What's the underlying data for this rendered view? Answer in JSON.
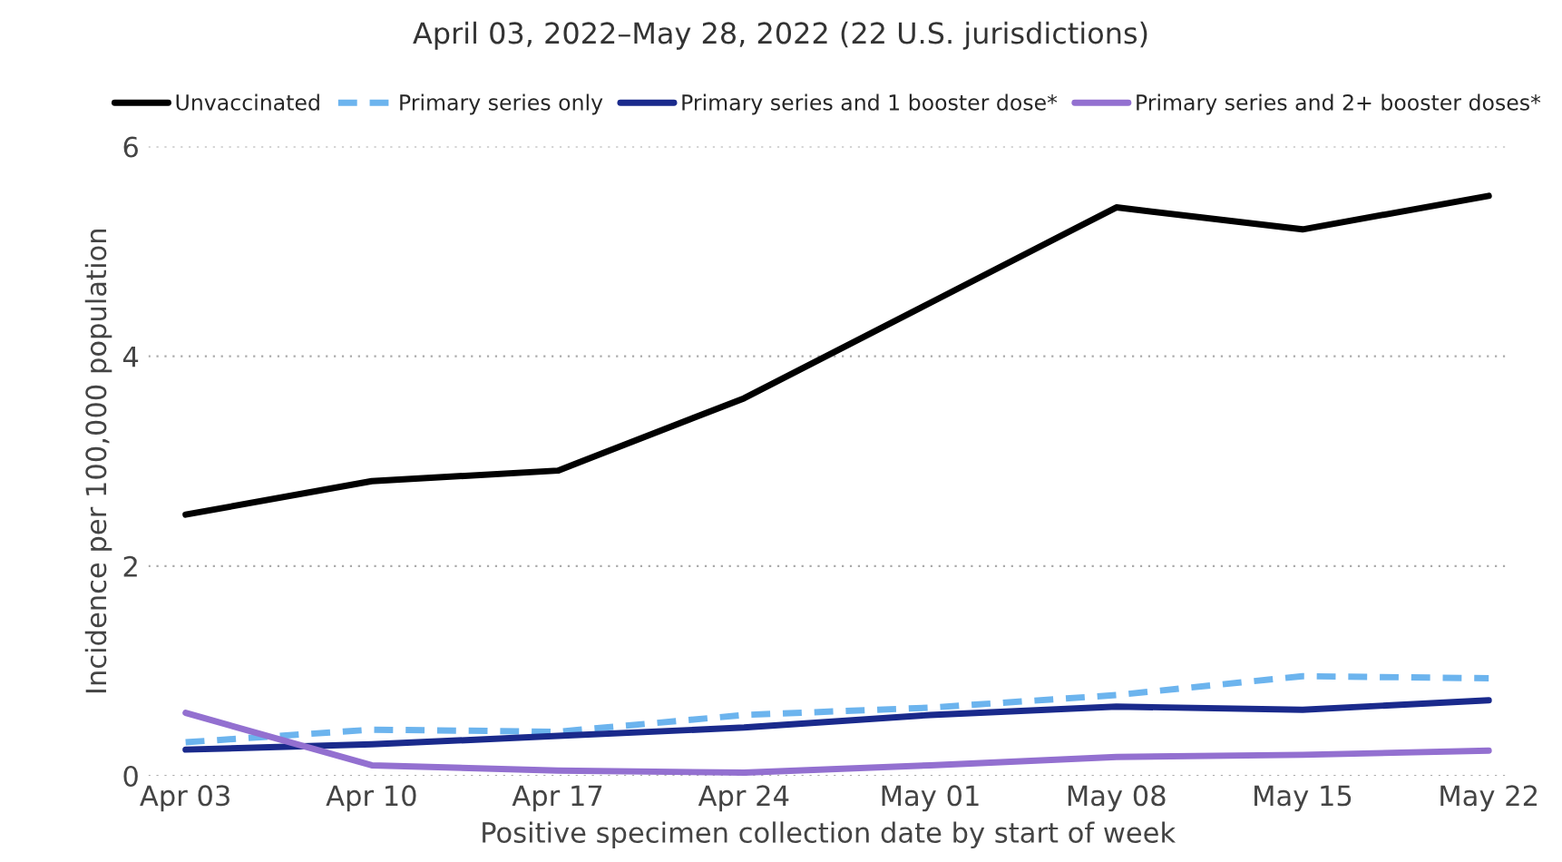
{
  "chart_data": {
    "type": "line",
    "title": "April 03, 2022–May 28, 2022 (22 U.S. jurisdictions)",
    "xlabel": "Positive specimen collection date by start of week",
    "ylabel": "Incidence per 100,000 population",
    "categories": [
      "Apr 03",
      "Apr 10",
      "Apr 17",
      "Apr 24",
      "May 01",
      "May 08",
      "May 15",
      "May 22"
    ],
    "series": [
      {
        "name": "Unvaccinated",
        "color": "#000000",
        "line_style": "solid",
        "values": [
          2.49,
          2.81,
          2.91,
          3.6,
          4.51,
          5.42,
          5.21,
          5.53
        ]
      },
      {
        "name": "Primary series only",
        "color": "#6cb4ee",
        "line_style": "dashed",
        "values": [
          0.32,
          0.44,
          0.42,
          0.58,
          0.65,
          0.77,
          0.95,
          0.93
        ]
      },
      {
        "name": "Primary series and 1 booster dose*",
        "color": "#1a2a8c",
        "line_style": "solid",
        "values": [
          0.25,
          0.3,
          0.38,
          0.46,
          0.58,
          0.66,
          0.63,
          0.72
        ]
      },
      {
        "name": "Primary series and 2+ booster doses*",
        "color": "#9370d0",
        "line_style": "solid",
        "values": [
          0.6,
          0.1,
          0.05,
          0.03,
          0.1,
          0.18,
          0.2,
          0.24
        ]
      }
    ],
    "ylim": [
      0,
      6
    ],
    "yticks": [
      0,
      2,
      4,
      6
    ],
    "grid": "y",
    "legend": "top",
    "marker": "none"
  }
}
